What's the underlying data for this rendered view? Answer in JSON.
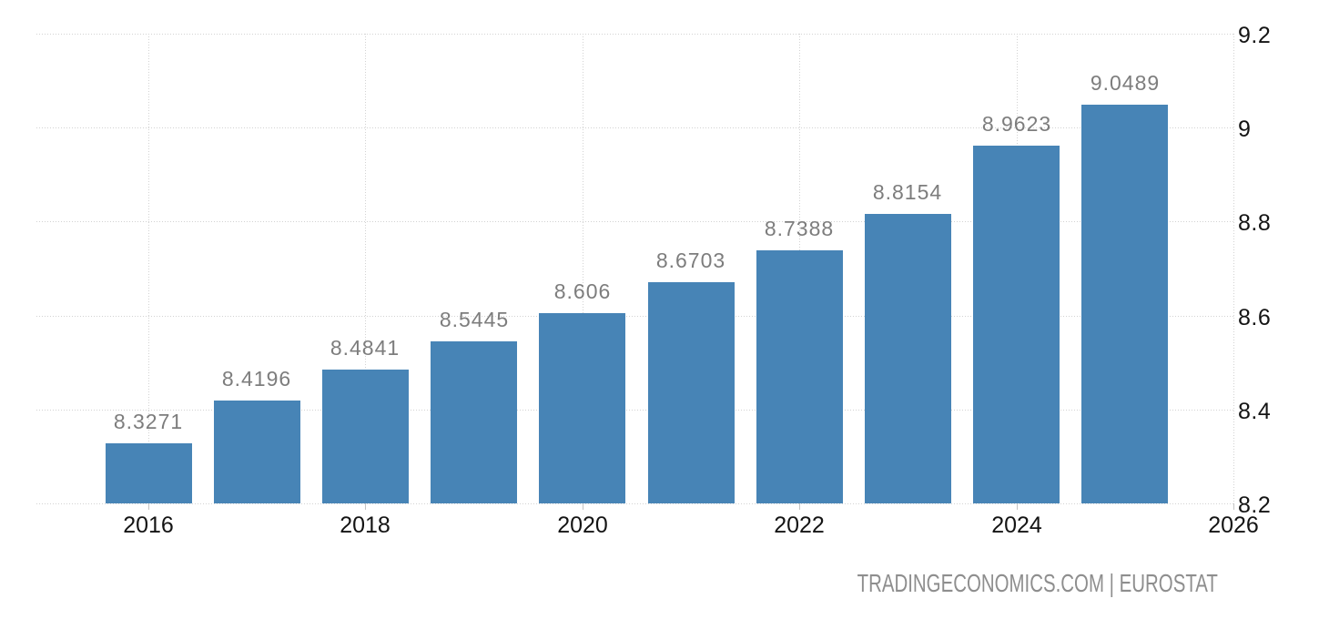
{
  "chart_data": {
    "type": "bar",
    "categories": [
      "2016",
      "2017",
      "2018",
      "2019",
      "2020",
      "2021",
      "2022",
      "2023",
      "2024",
      "2025"
    ],
    "values": [
      8.3271,
      8.4196,
      8.4841,
      8.5445,
      8.606,
      8.6703,
      8.7388,
      8.8154,
      8.9623,
      9.0489
    ],
    "bar_labels": [
      "8.3271",
      "8.4196",
      "8.4841",
      "8.5445",
      "8.606",
      "8.6703",
      "8.7388",
      "8.8154",
      "8.9623",
      "9.0489"
    ],
    "title": "",
    "xlabel": "",
    "ylabel": "",
    "ylim": [
      8.2,
      9.2
    ],
    "y_tick_values": [
      9.2,
      9,
      8.8,
      8.6,
      8.4,
      8.2
    ],
    "y_tick_labels": [
      "9.2",
      "9",
      "8.8",
      "8.6",
      "8.4",
      "8.2"
    ],
    "x_tick_years": [
      2016,
      2018,
      2020,
      2022,
      2024,
      2026
    ],
    "x_tick_labels": [
      "2016",
      "2018",
      "2020",
      "2022",
      "2024",
      "2026"
    ],
    "grid": true,
    "legend": "none",
    "colors": {
      "bar": "#4784b6",
      "gridline": "#d2d2d2",
      "value_label": "#7d7d7d",
      "axis_label": "#141414",
      "tick_mark": "#c4c4c4",
      "attribution": "#8e8e8e"
    }
  },
  "footer": {
    "attribution": "TRADINGECONOMICS.COM | EUROSTAT"
  }
}
